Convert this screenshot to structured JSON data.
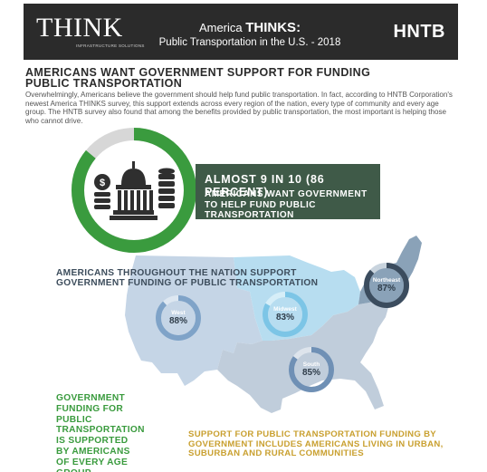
{
  "header": {
    "logo_text": "THINK",
    "logo_subtext": "INFRASTRUCTURE SOLUTIONS",
    "title_prefix": "America ",
    "title_brand": "THINKS:",
    "subtitle": "Public Transportation in the U.S. - 2018",
    "brand_logo": "HNTB"
  },
  "headline": "AMERICANS WANT GOVERNMENT SUPPORT FOR FUNDING PUBLIC TRANSPORTATION",
  "intro_text": "Overwhelmingly, Americans believe the government should help fund public transportation. In fact, according to HNTB Corporation's newest America THINKS survey, this support extends across every region of the nation, every type of community and every age group. The HNTB survey also found that among the benefits provided by public transportation, the most important is helping those who cannot drive.",
  "highlight": {
    "big": "ALMOST 9 IN 10  (86 PERCENT)",
    "small": "AMERICANS WANT GOVERNMENT TO HELP FUND PUBLIC TRANSPORTATION",
    "value_percent": 86,
    "icons": [
      "money-bag-icon",
      "capitol-building-icon",
      "coin-stack-icon"
    ]
  },
  "nation_heading": "AMERICANS THROUGHOUT THE NATION SUPPORT GOVERNMENT FUNDING OF PUBLIC TRANSPORTATION",
  "regions": [
    {
      "name": "West",
      "value_label": "88%",
      "value": 88
    },
    {
      "name": "Midwest",
      "value_label": "83%",
      "value": 83
    },
    {
      "name": "Northeast",
      "value_label": "87%",
      "value": 87
    },
    {
      "name": "South",
      "value_label": "85%",
      "value": 85
    }
  ],
  "age_text": "GOVERNMENT FUNDING FOR PUBLIC TRANSPORTATION IS SUPPORTED BY AMERICANS OF EVERY AGE GROUP",
  "community_text": "SUPPORT FOR PUBLIC TRANSPORTATION FUNDING BY GOVERNMENT INCLUDES AMERICANS LIVING IN URBAN, SUBURBAN AND RURAL COMMUNITIES",
  "colors": {
    "header_bg": "#2b2b2b",
    "green": "#3a9b3e",
    "dark_green_panel": "#3f5a48",
    "west": "#c5d5e6",
    "midwest": "#b7ddf0",
    "northeast": "#8aa2b8",
    "south": "#c0cddb",
    "gold": "#c9a030"
  }
}
